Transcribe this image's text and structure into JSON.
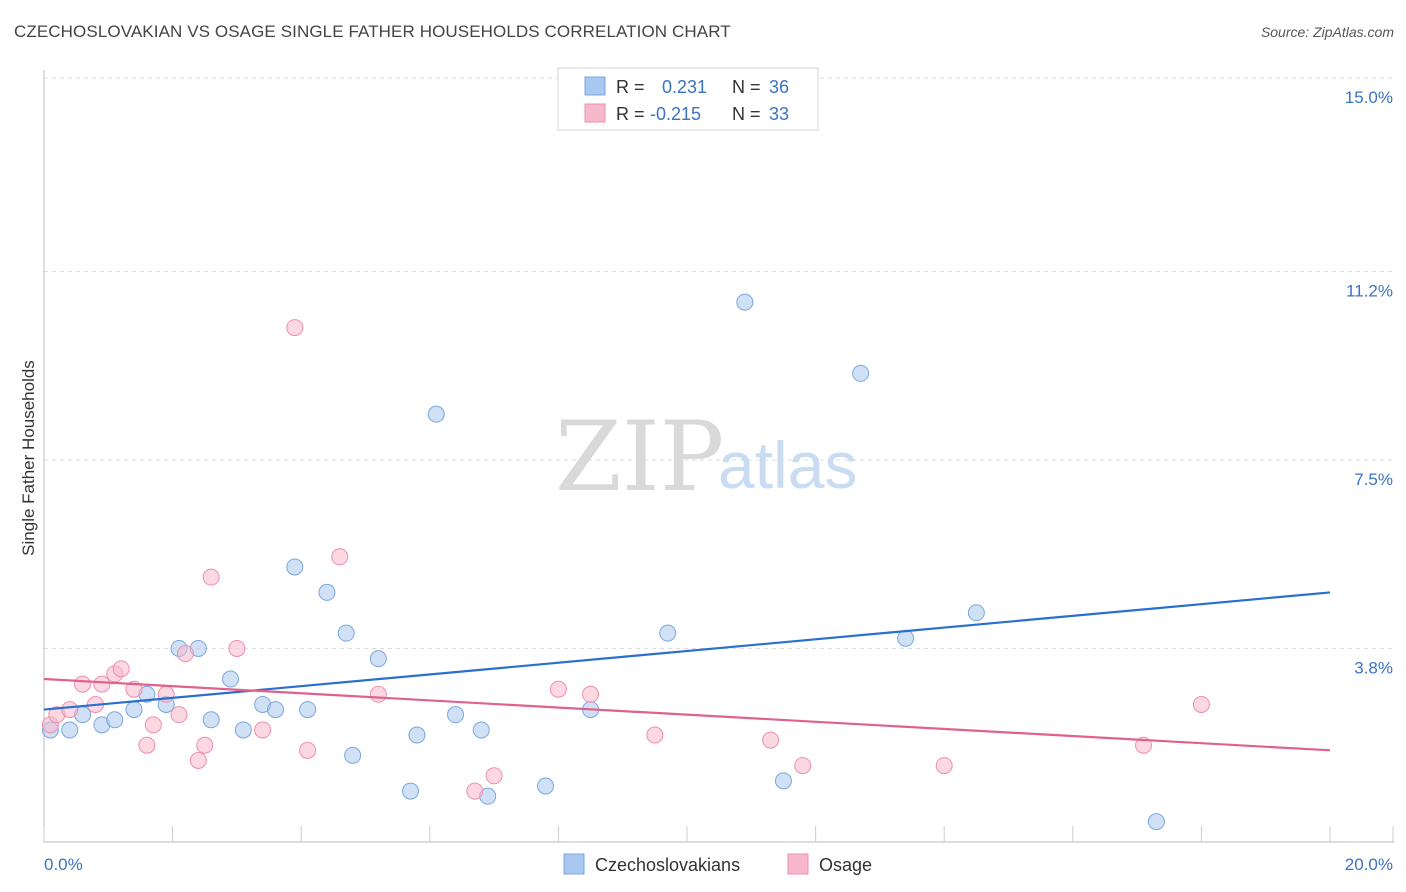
{
  "title": "CZECHOSLOVAKIAN VS OSAGE SINGLE FATHER HOUSEHOLDS CORRELATION CHART",
  "source": "Source: ZipAtlas.com",
  "watermark": {
    "zip": "ZIP",
    "atlas": "atlas"
  },
  "legend": {
    "rows": [
      {
        "r_label": "R =",
        "r_value": "0.231",
        "n_label": "N =",
        "n_value": "36",
        "color": "#a9c8ef"
      },
      {
        "r_label": "R =",
        "r_value": "-0.215",
        "n_label": "N =",
        "n_value": "33",
        "color": "#f7b8cb"
      }
    ]
  },
  "bottom_legend": [
    "Czechoslovakians",
    "Osage"
  ],
  "chart_data": {
    "type": "scatter",
    "title": "CZECHOSLOVAKIAN VS OSAGE SINGLE FATHER HOUSEHOLDS CORRELATION CHART",
    "xlabel": "",
    "ylabel": "Single Father Households",
    "xlim": [
      0,
      20
    ],
    "ylim": [
      0,
      15
    ],
    "x_tick_labels": [
      "0.0%",
      "20.0%"
    ],
    "y_ticks": [
      3.8,
      7.5,
      11.2,
      15.0
    ],
    "y_tick_labels": [
      "3.8%",
      "7.5%",
      "11.2%",
      "15.0%"
    ],
    "grid": true,
    "legend_placement": "top-center",
    "series": [
      {
        "name": "Czechoslovakians",
        "color": "#a9c8ef",
        "stroke": "#7aa6de",
        "line_color": "#2b6fce",
        "trend": [
          [
            0,
            2.6
          ],
          [
            20,
            4.9
          ]
        ],
        "points": [
          [
            0.1,
            2.2
          ],
          [
            0.4,
            2.2
          ],
          [
            0.6,
            2.5
          ],
          [
            0.9,
            2.3
          ],
          [
            1.1,
            2.4
          ],
          [
            1.4,
            2.6
          ],
          [
            1.6,
            2.9
          ],
          [
            1.9,
            2.7
          ],
          [
            2.1,
            3.8
          ],
          [
            2.4,
            3.8
          ],
          [
            2.6,
            2.4
          ],
          [
            2.9,
            3.2
          ],
          [
            3.1,
            2.2
          ],
          [
            3.4,
            2.7
          ],
          [
            3.6,
            2.6
          ],
          [
            3.9,
            5.4
          ],
          [
            4.1,
            2.6
          ],
          [
            4.4,
            4.9
          ],
          [
            4.7,
            4.1
          ],
          [
            4.8,
            1.7
          ],
          [
            5.2,
            3.6
          ],
          [
            5.7,
            1.0
          ],
          [
            5.8,
            2.1
          ],
          [
            6.1,
            8.4
          ],
          [
            6.4,
            2.5
          ],
          [
            6.8,
            2.2
          ],
          [
            6.9,
            0.9
          ],
          [
            7.8,
            1.1
          ],
          [
            8.5,
            2.6
          ],
          [
            9.7,
            4.1
          ],
          [
            10.9,
            10.6
          ],
          [
            11.5,
            1.2
          ],
          [
            12.7,
            9.2
          ],
          [
            13.4,
            4.0
          ],
          [
            14.5,
            4.5
          ],
          [
            17.3,
            0.4
          ]
        ]
      },
      {
        "name": "Osage",
        "color": "#f7b8cb",
        "stroke": "#ee8fac",
        "line_color": "#e0618c",
        "trend": [
          [
            0,
            3.2
          ],
          [
            20,
            1.8
          ]
        ],
        "points": [
          [
            0.1,
            2.3
          ],
          [
            0.2,
            2.5
          ],
          [
            0.4,
            2.6
          ],
          [
            0.6,
            3.1
          ],
          [
            0.8,
            2.7
          ],
          [
            0.9,
            3.1
          ],
          [
            1.1,
            3.3
          ],
          [
            1.2,
            3.4
          ],
          [
            1.4,
            3.0
          ],
          [
            1.6,
            1.9
          ],
          [
            1.7,
            2.3
          ],
          [
            1.9,
            2.9
          ],
          [
            2.1,
            2.5
          ],
          [
            2.2,
            3.7
          ],
          [
            2.4,
            1.6
          ],
          [
            2.5,
            1.9
          ],
          [
            2.6,
            5.2
          ],
          [
            3.0,
            3.8
          ],
          [
            3.4,
            2.2
          ],
          [
            3.9,
            10.1
          ],
          [
            4.1,
            1.8
          ],
          [
            4.6,
            5.6
          ],
          [
            5.2,
            2.9
          ],
          [
            6.7,
            1.0
          ],
          [
            7.0,
            1.3
          ],
          [
            8.0,
            3.0
          ],
          [
            8.5,
            2.9
          ],
          [
            9.5,
            2.1
          ],
          [
            11.3,
            2.0
          ],
          [
            11.8,
            1.5
          ],
          [
            14.0,
            1.5
          ],
          [
            17.1,
            1.9
          ],
          [
            18.0,
            2.7
          ]
        ]
      }
    ]
  }
}
